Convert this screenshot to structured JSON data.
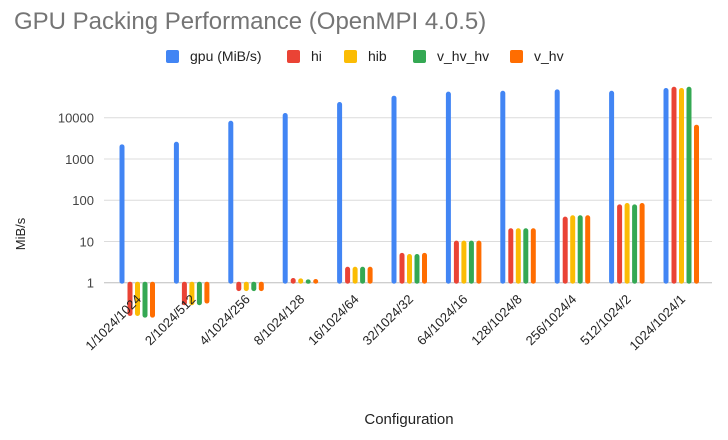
{
  "chart_data": {
    "type": "bar",
    "title": "GPU Packing Performance (OpenMPI 4.0.5)",
    "xlabel": "Configuration",
    "ylabel": "MiB/s",
    "yscale": "log",
    "ylim": [
      0.1,
      100000
    ],
    "yticks": [
      "1",
      "10",
      "100",
      "1000",
      "10000"
    ],
    "yticks_values": [
      1,
      10,
      100,
      1000,
      10000
    ],
    "grid": true,
    "legend_position": "top",
    "categories": [
      "1/1024/1024",
      "2/1024/512",
      "4/1024/256",
      "8/1024/128",
      "16/1024/64",
      "32/1024/32",
      "64/1024/16",
      "128/1024/8",
      "256/1024/4",
      "512/1024/2",
      "1024/1024/1"
    ],
    "series": [
      {
        "name": "gpu (MiB/s)",
        "color": "#4285f4",
        "values": [
          2140,
          2470,
          7980,
          12300,
          22700,
          32300,
          40500,
          42600,
          46000,
          42600,
          49700
        ]
      },
      {
        "name": "hi",
        "color": "#ea4335",
        "values": [
          0.165,
          0.3,
          0.66,
          1.23,
          2.3,
          5.0,
          9.9,
          19.7,
          37.8,
          75,
          53300
        ]
      },
      {
        "name": "hib",
        "color": "#fbbc04",
        "values": [
          0.165,
          0.3,
          0.66,
          1.2,
          2.3,
          4.7,
          9.9,
          19.7,
          40.7,
          81,
          49700
        ]
      },
      {
        "name": "v_hv_hv",
        "color": "#34a853",
        "values": [
          0.15,
          0.3,
          0.66,
          1.14,
          2.3,
          4.7,
          9.9,
          19.7,
          40.7,
          75,
          53300
        ]
      },
      {
        "name": "v_hv",
        "color": "#ff6d01",
        "values": [
          0.15,
          0.33,
          0.66,
          1.16,
          2.3,
          5.0,
          9.9,
          19.7,
          40.7,
          81,
          6400
        ]
      }
    ]
  }
}
